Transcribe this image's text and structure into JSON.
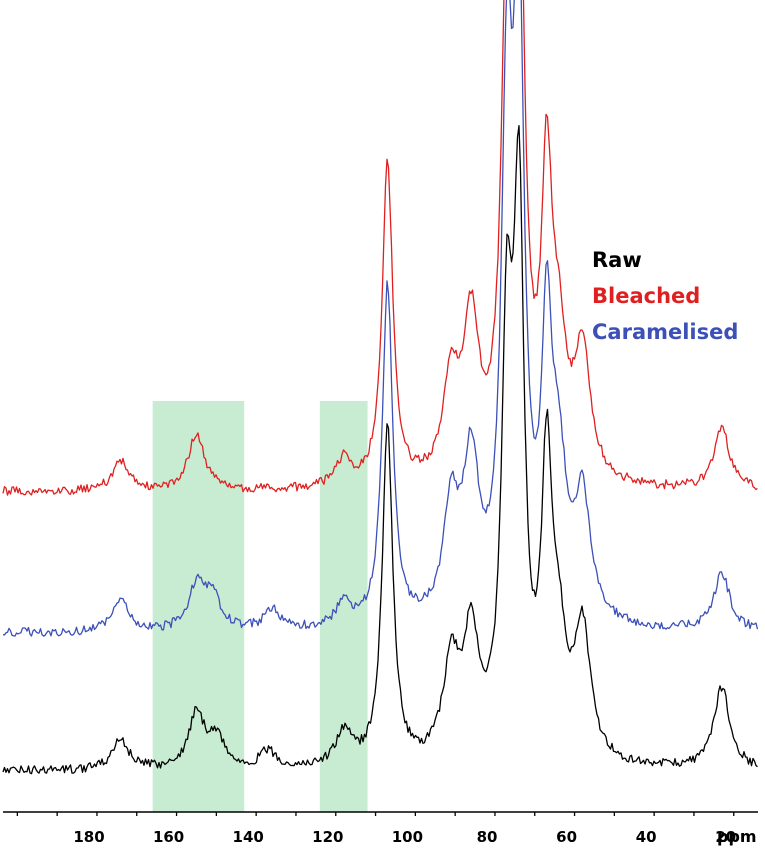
{
  "chart_data": {
    "type": "line",
    "title": "",
    "xlabel": "ppm",
    "ylabel": "",
    "x_reversed": true,
    "xlim": [
      200,
      0
    ],
    "xticks_major": [
      180,
      160,
      140,
      120,
      100,
      80,
      60,
      40,
      20
    ],
    "grid": false,
    "legend_position": "right",
    "highlight_ranges": [
      [
        164,
        141
      ],
      [
        122,
        110
      ]
    ],
    "highlight_color": "#c8ecd2",
    "series": [
      {
        "name": "Raw",
        "color": "#000000",
        "peaks": [
          {
            "x": 172,
            "h": 0.09
          },
          {
            "x": 153,
            "h": 0.16
          },
          {
            "x": 148,
            "h": 0.09
          },
          {
            "x": 135,
            "h": 0.05
          },
          {
            "x": 116,
            "h": 0.1
          },
          {
            "x": 105,
            "h": 1.0
          },
          {
            "x": 89,
            "h": 0.28
          },
          {
            "x": 84,
            "h": 0.35
          },
          {
            "x": 75,
            "h": 1.15
          },
          {
            "x": 72,
            "h": 1.55
          },
          {
            "x": 65,
            "h": 0.8
          },
          {
            "x": 62,
            "h": 0.3
          },
          {
            "x": 56,
            "h": 0.38
          },
          {
            "x": 21,
            "h": 0.24
          }
        ]
      },
      {
        "name": "Bleached",
        "color": "#e02020",
        "peaks": [
          {
            "x": 172,
            "h": 0.09
          },
          {
            "x": 153,
            "h": 0.17
          },
          {
            "x": 116,
            "h": 0.08
          },
          {
            "x": 105,
            "h": 0.95
          },
          {
            "x": 89,
            "h": 0.28
          },
          {
            "x": 84,
            "h": 0.45
          },
          {
            "x": 75,
            "h": 1.35
          },
          {
            "x": 72,
            "h": 1.78
          },
          {
            "x": 65,
            "h": 0.82
          },
          {
            "x": 62,
            "h": 0.35
          },
          {
            "x": 56,
            "h": 0.37
          },
          {
            "x": 21,
            "h": 0.18
          }
        ]
      },
      {
        "name": "Caramelised",
        "color": "#3c50b8",
        "peaks": [
          {
            "x": 172,
            "h": 0.09
          },
          {
            "x": 153,
            "h": 0.13
          },
          {
            "x": 149,
            "h": 0.1
          },
          {
            "x": 134,
            "h": 0.06
          },
          {
            "x": 116,
            "h": 0.07
          },
          {
            "x": 105,
            "h": 1.0
          },
          {
            "x": 89,
            "h": 0.32
          },
          {
            "x": 84,
            "h": 0.45
          },
          {
            "x": 75,
            "h": 1.45
          },
          {
            "x": 72,
            "h": 1.75
          },
          {
            "x": 65,
            "h": 0.78
          },
          {
            "x": 62,
            "h": 0.4
          },
          {
            "x": 56,
            "h": 0.35
          },
          {
            "x": 21,
            "h": 0.17
          }
        ]
      }
    ]
  }
}
